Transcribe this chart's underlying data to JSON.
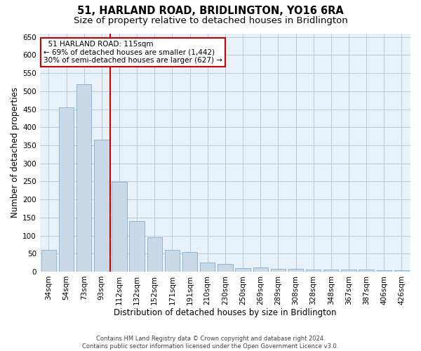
{
  "title": "51, HARLAND ROAD, BRIDLINGTON, YO16 6RA",
  "subtitle": "Size of property relative to detached houses in Bridlington",
  "xlabel": "Distribution of detached houses by size in Bridlington",
  "ylabel": "Number of detached properties",
  "bar_labels": [
    "34sqm",
    "54sqm",
    "73sqm",
    "93sqm",
    "112sqm",
    "132sqm",
    "152sqm",
    "171sqm",
    "191sqm",
    "210sqm",
    "230sqm",
    "250sqm",
    "269sqm",
    "289sqm",
    "308sqm",
    "328sqm",
    "348sqm",
    "367sqm",
    "387sqm",
    "406sqm",
    "426sqm"
  ],
  "bar_values": [
    60,
    455,
    520,
    365,
    248,
    140,
    95,
    60,
    55,
    25,
    22,
    10,
    12,
    8,
    7,
    6,
    5,
    5,
    5,
    4,
    4
  ],
  "bar_color": "#c9d9e8",
  "bar_edge_color": "#7faecf",
  "grid_color": "#b0c4de",
  "background_color": "#e8f1f8",
  "red_line_x": 3.5,
  "red_line_label": "51 HARLAND ROAD: 115sqm",
  "annotation_line1": "← 69% of detached houses are smaller (1,442)",
  "annotation_line2": "30% of semi-detached houses are larger (627) →",
  "annotation_box_color": "#ffffff",
  "annotation_box_edge": "#cc0000",
  "red_line_color": "#cc0000",
  "ylim": [
    0,
    660
  ],
  "yticks": [
    0,
    50,
    100,
    150,
    200,
    250,
    300,
    350,
    400,
    450,
    500,
    550,
    600,
    650
  ],
  "footer_line1": "Contains HM Land Registry data © Crown copyright and database right 2024.",
  "footer_line2": "Contains public sector information licensed under the Open Government Licence v3.0.",
  "title_fontsize": 10.5,
  "subtitle_fontsize": 9.5,
  "xlabel_fontsize": 8.5,
  "ylabel_fontsize": 8.5,
  "tick_fontsize": 7.5,
  "footer_fontsize": 6.0,
  "annot_fontsize": 7.5
}
